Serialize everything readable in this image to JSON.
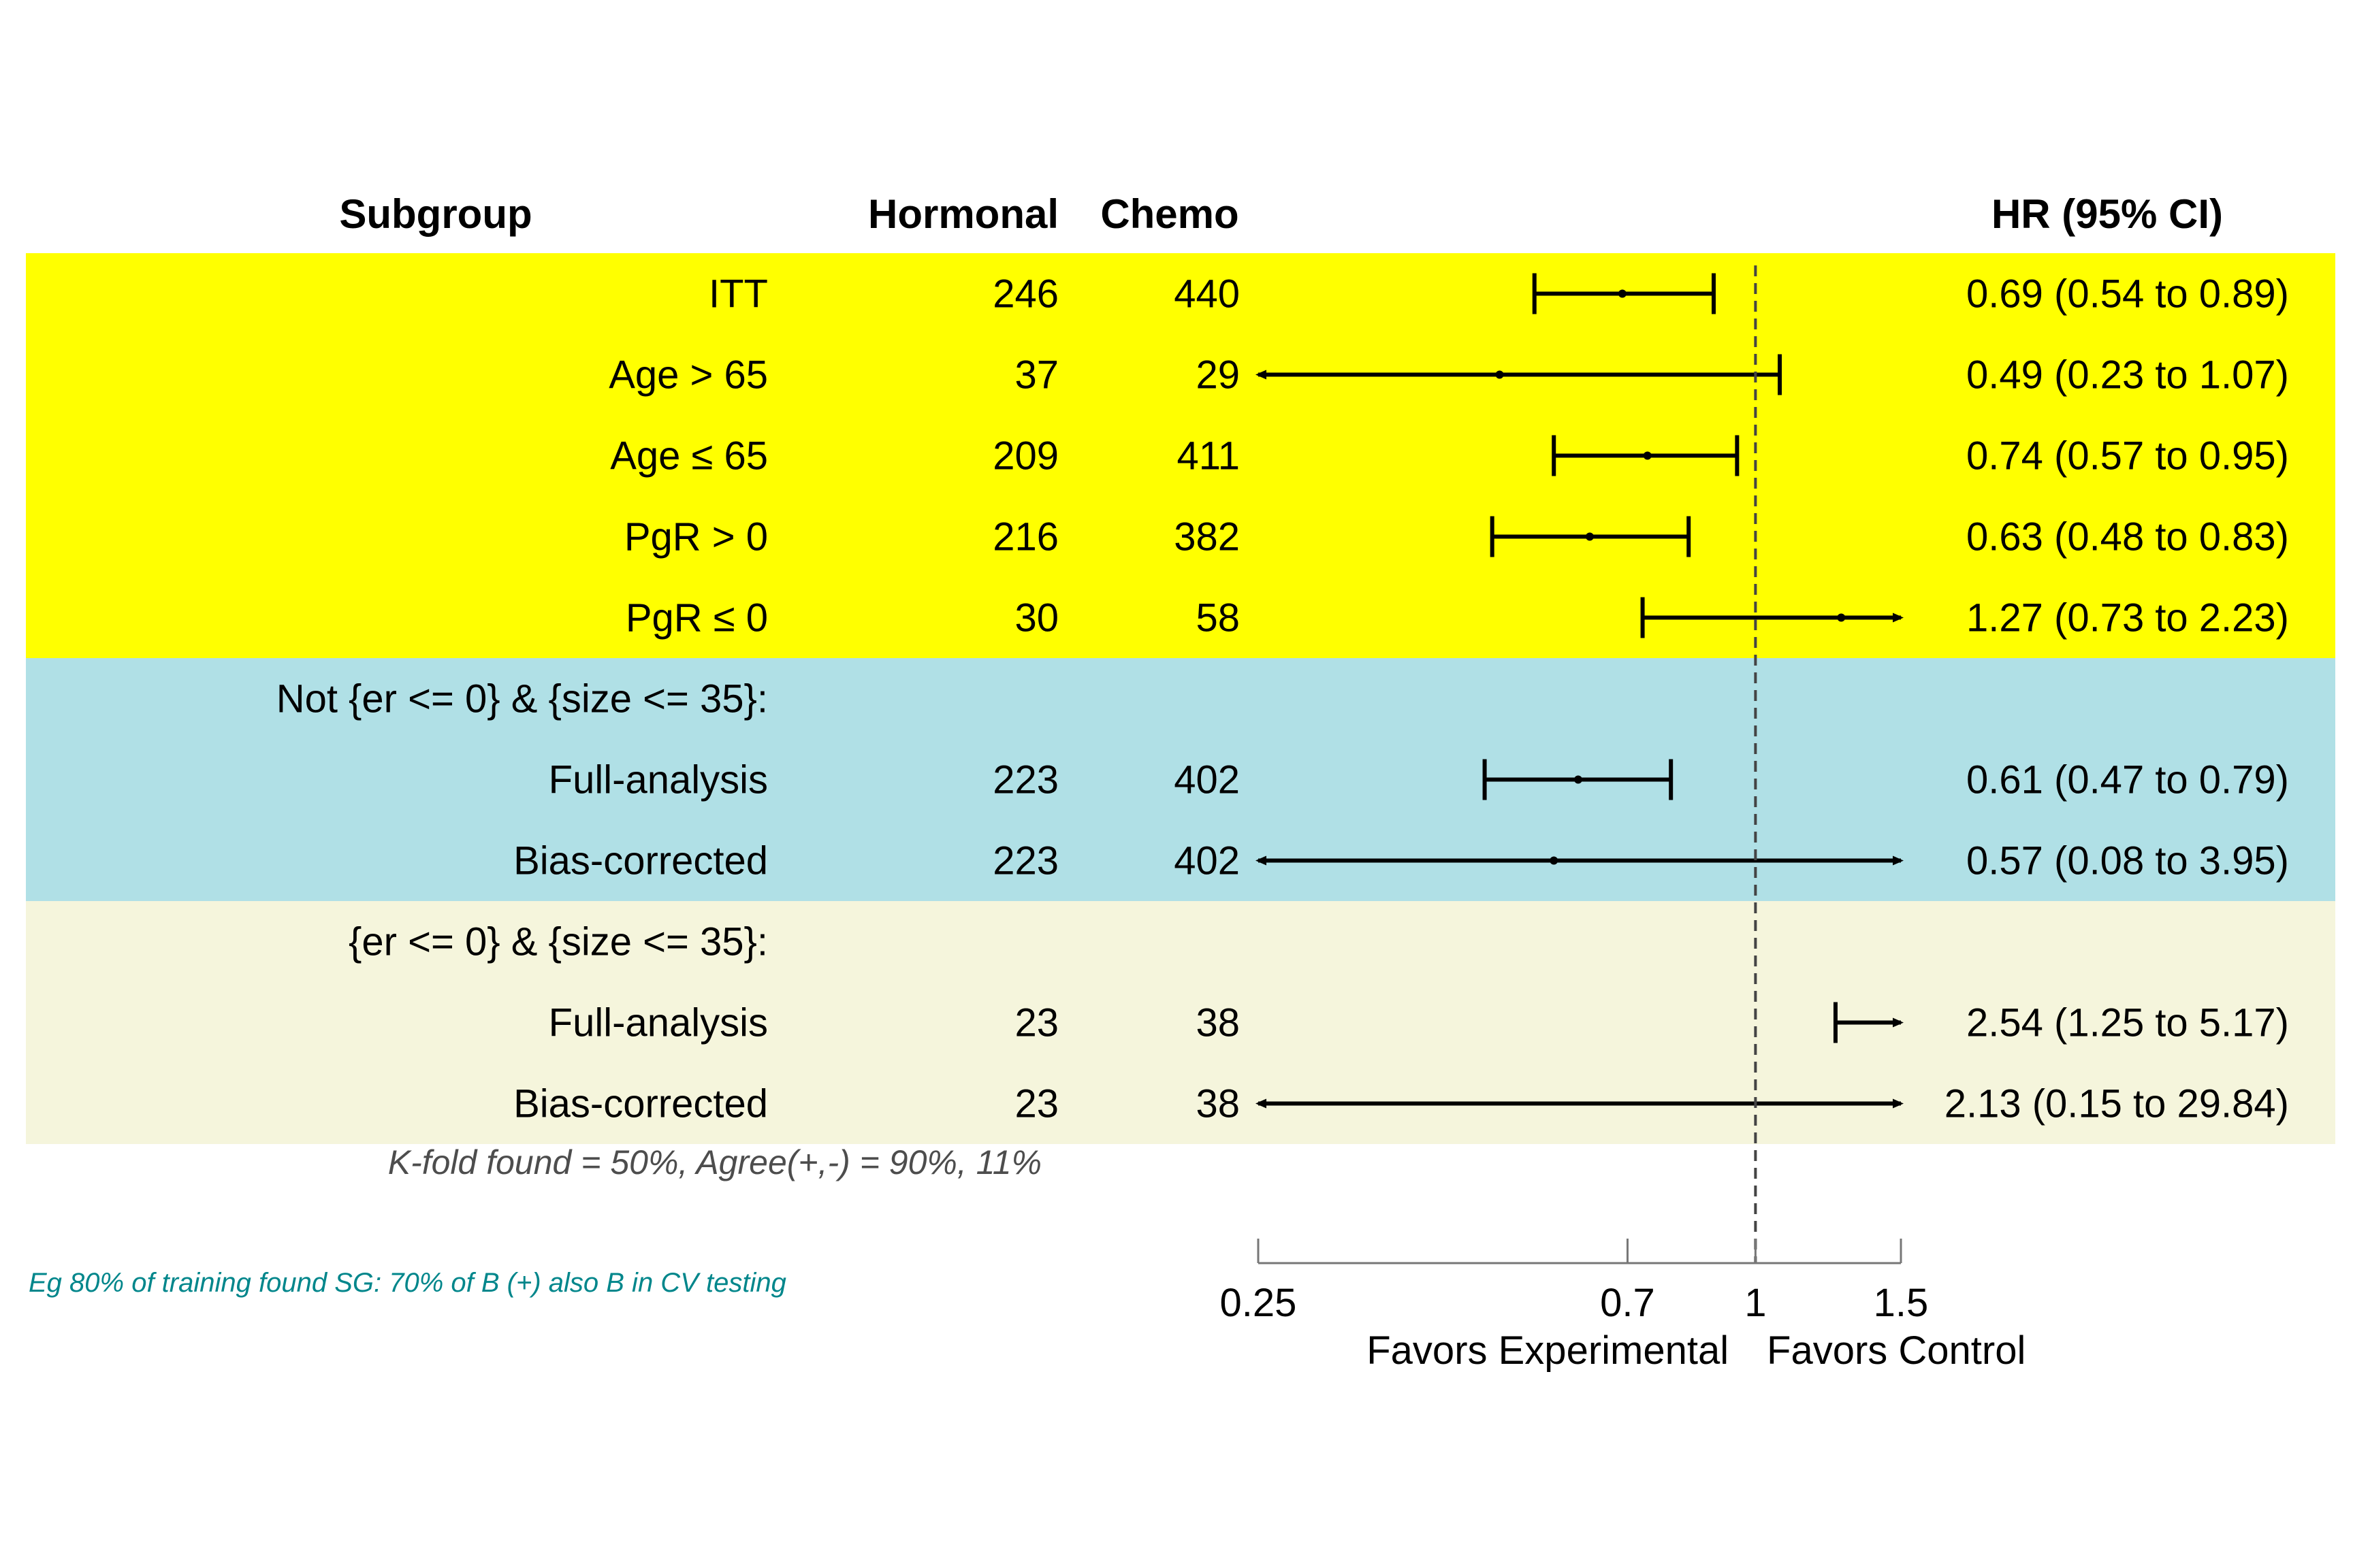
{
  "colors": {
    "band_primary": "#ffff00",
    "band_group1": "#b0e0e6",
    "band_group2": "#f5f5dc",
    "ref_line": "#444444",
    "note2": "#00868b"
  },
  "chart_data": {
    "type": "forest",
    "headers": {
      "subgroup": "Subgroup",
      "hormonal": "Hormonal",
      "chemo": "Chemo",
      "hr": "HR (95% CI)"
    },
    "rows": [
      {
        "band": "band_primary",
        "label": "ITT",
        "hormonal": "246",
        "chemo": "440",
        "hr": 0.69,
        "lo": 0.54,
        "hi": 0.89,
        "hr_text": "0.69 (0.54 to 0.89)"
      },
      {
        "band": "band_primary",
        "label": "Age > 65",
        "hormonal": "37",
        "chemo": "29",
        "hr": 0.49,
        "lo": 0.23,
        "hi": 1.07,
        "hr_text": "0.49 (0.23 to 1.07)"
      },
      {
        "band": "band_primary",
        "label": "Age ≤ 65",
        "hormonal": "209",
        "chemo": "411",
        "hr": 0.74,
        "lo": 0.57,
        "hi": 0.95,
        "hr_text": "0.74 (0.57 to 0.95)"
      },
      {
        "band": "band_primary",
        "label": "PgR > 0",
        "hormonal": "216",
        "chemo": "382",
        "hr": 0.63,
        "lo": 0.48,
        "hi": 0.83,
        "hr_text": "0.63 (0.48 to 0.83)"
      },
      {
        "band": "band_primary",
        "label": "PgR ≤ 0",
        "hormonal": "30",
        "chemo": "58",
        "hr": 1.27,
        "lo": 0.73,
        "hi": 2.23,
        "hr_text": "1.27 (0.73 to 2.23)"
      },
      {
        "band": "band_group1",
        "label": "Not {er <= 0} & {size <= 35}:",
        "hormonal": "",
        "chemo": "",
        "hr": null,
        "lo": null,
        "hi": null,
        "hr_text": ""
      },
      {
        "band": "band_group1",
        "label": "Full-analysis",
        "hormonal": "223",
        "chemo": "402",
        "hr": 0.61,
        "lo": 0.47,
        "hi": 0.79,
        "hr_text": "0.61 (0.47 to 0.79)"
      },
      {
        "band": "band_group1",
        "label": "Bias-corrected",
        "hormonal": "223",
        "chemo": "402",
        "hr": 0.57,
        "lo": 0.08,
        "hi": 3.95,
        "hr_text": "0.57 (0.08 to 3.95)"
      },
      {
        "band": "band_group2",
        "label": "{er <= 0} & {size <= 35}:",
        "hormonal": "",
        "chemo": "",
        "hr": null,
        "lo": null,
        "hi": null,
        "hr_text": ""
      },
      {
        "band": "band_group2",
        "label": "Full-analysis",
        "hormonal": "23",
        "chemo": "38",
        "hr": 2.54,
        "lo": 1.25,
        "hi": 5.17,
        "hr_text": "2.54 (1.25 to 5.17)"
      },
      {
        "band": "band_group2",
        "label": "Bias-corrected",
        "hormonal": "23",
        "chemo": "38",
        "hr": 2.13,
        "lo": 0.15,
        "hi": 29.84,
        "hr_text": "2.13 (0.15 to 29.84)"
      }
    ],
    "x_axis": {
      "scale": "log",
      "range": [
        0.25,
        1.5
      ],
      "ticks": [
        0.25,
        0.7,
        1,
        1.5
      ],
      "tick_labels": [
        "0.25",
        "0.7",
        "1",
        "1.5"
      ],
      "reference": 1,
      "label_left": "Favors Experimental",
      "label_right": "Favors Control"
    },
    "notes": [
      "K-fold found = 50%, Agree(+,-) =  90%, 11%",
      "Eg 80% of training found SG: 70% of B (+) also B in CV testing"
    ]
  }
}
